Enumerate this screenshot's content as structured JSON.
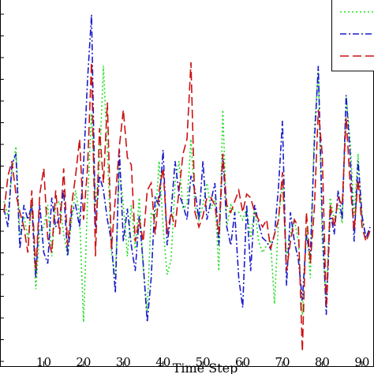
{
  "chart_data": {
    "type": "line",
    "xlabel": "Time Step",
    "ylabel": "",
    "title": "",
    "xlim": [
      -1,
      93
    ],
    "ylim": [
      0,
      100
    ],
    "grid": false,
    "legend_position": "top-right",
    "x_ticks": [
      10,
      20,
      30,
      40,
      50,
      60,
      70,
      80,
      90
    ],
    "x_tick_labels": [
      "10",
      "20",
      "30",
      "40",
      "50",
      "60",
      "70",
      "80",
      "90"
    ],
    "series": [
      {
        "style": "dotted",
        "color": "#22dd22",
        "x": [
          0,
          1,
          2,
          3,
          4,
          5,
          6,
          7,
          8,
          9,
          10,
          11,
          12,
          13,
          14,
          15,
          16,
          17,
          18,
          19,
          20,
          21,
          22,
          23,
          24,
          25,
          26,
          27,
          28,
          29,
          30,
          31,
          32,
          33,
          34,
          35,
          36,
          37,
          38,
          39,
          40,
          41,
          42,
          43,
          44,
          45,
          46,
          47,
          48,
          49,
          50,
          51,
          52,
          53,
          54,
          55,
          56,
          57,
          58,
          59,
          60,
          61,
          62,
          63,
          64,
          65,
          66,
          67,
          68,
          69,
          70,
          71,
          72,
          73,
          74,
          75,
          76,
          77,
          78,
          79,
          80,
          81,
          82,
          83,
          84,
          85,
          86,
          87,
          88,
          89,
          90,
          91,
          92
        ],
        "values": [
          45,
          41,
          53,
          60,
          36,
          41,
          35,
          44,
          21,
          37,
          38,
          44,
          30,
          44,
          45,
          36,
          30,
          40,
          48,
          41,
          12,
          45,
          69,
          44,
          55,
          82,
          58,
          31,
          24,
          55,
          44,
          30,
          44,
          32,
          46,
          27,
          15,
          42,
          40,
          56,
          38,
          25,
          29,
          50,
          56,
          43,
          44,
          62,
          44,
          40,
          44,
          50,
          43,
          46,
          26,
          70,
          38,
          44,
          42,
          42,
          40,
          43,
          35,
          43,
          34,
          31,
          33,
          34,
          17,
          40,
          50,
          30,
          36,
          40,
          34,
          14,
          38,
          24,
          64,
          81,
          34,
          18,
          46,
          40,
          44,
          39,
          74,
          62,
          41,
          58,
          40,
          35,
          36
        ]
      },
      {
        "style": "dash-dot",
        "color": "#1a1acc",
        "x": [
          0,
          1,
          2,
          3,
          4,
          5,
          6,
          7,
          8,
          9,
          10,
          11,
          12,
          13,
          14,
          15,
          16,
          17,
          18,
          19,
          20,
          21,
          22,
          23,
          24,
          25,
          26,
          27,
          28,
          29,
          30,
          31,
          32,
          33,
          34,
          35,
          36,
          37,
          38,
          39,
          40,
          41,
          42,
          43,
          44,
          45,
          46,
          47,
          48,
          49,
          50,
          51,
          52,
          53,
          54,
          55,
          56,
          57,
          58,
          59,
          60,
          61,
          62,
          63,
          64,
          65,
          66,
          67,
          68,
          69,
          70,
          71,
          72,
          73,
          74,
          75,
          76,
          77,
          78,
          79,
          80,
          81,
          82,
          83,
          84,
          85,
          86,
          87,
          88,
          89,
          90,
          91,
          92
        ],
        "values": [
          43,
          38,
          55,
          58,
          32,
          44,
          40,
          44,
          24,
          44,
          31,
          28,
          46,
          38,
          41,
          48,
          30,
          42,
          44,
          38,
          55,
          78,
          96,
          38,
          52,
          48,
          40,
          34,
          20,
          59,
          34,
          43,
          33,
          26,
          41,
          28,
          12,
          24,
          46,
          44,
          59,
          33,
          42,
          56,
          47,
          44,
          40,
          52,
          48,
          40,
          56,
          40,
          45,
          50,
          33,
          58,
          38,
          33,
          42,
          24,
          16,
          44,
          26,
          44,
          39,
          35,
          34,
          32,
          36,
          49,
          67,
          22,
          42,
          34,
          29,
          18,
          36,
          30,
          61,
          82,
          40,
          14,
          42,
          36,
          48,
          40,
          74,
          58,
          34,
          56,
          41,
          35,
          38
        ]
      },
      {
        "style": "dashed",
        "color": "#cc1111",
        "x": [
          0,
          1,
          2,
          3,
          4,
          5,
          6,
          7,
          8,
          9,
          10,
          11,
          12,
          13,
          14,
          15,
          16,
          17,
          18,
          19,
          20,
          21,
          22,
          23,
          24,
          25,
          26,
          27,
          28,
          29,
          30,
          31,
          32,
          33,
          34,
          35,
          36,
          37,
          38,
          39,
          40,
          41,
          42,
          43,
          44,
          45,
          46,
          47,
          48,
          49,
          50,
          51,
          52,
          53,
          54,
          55,
          56,
          57,
          58,
          59,
          60,
          61,
          62,
          63,
          64,
          65,
          66,
          67,
          68,
          69,
          70,
          71,
          72,
          73,
          74,
          75,
          76,
          77,
          78,
          79,
          80,
          81,
          82,
          83,
          84,
          85,
          86,
          87,
          88,
          89,
          90,
          91,
          92
        ],
        "values": [
          42,
          52,
          56,
          47,
          42,
          38,
          31,
          48,
          26,
          47,
          54,
          35,
          31,
          48,
          36,
          54,
          33,
          44,
          52,
          62,
          40,
          54,
          83,
          30,
          65,
          50,
          72,
          32,
          46,
          60,
          70,
          57,
          55,
          34,
          40,
          34,
          48,
          50,
          36,
          48,
          54,
          36,
          42,
          38,
          48,
          58,
          62,
          83,
          42,
          38,
          41,
          46,
          46,
          44,
          36,
          58,
          44,
          42,
          45,
          48,
          42,
          47,
          46,
          42,
          40,
          38,
          40,
          32,
          36,
          40,
          53,
          26,
          34,
          40,
          38,
          4,
          42,
          28,
          43,
          70,
          58,
          16,
          44,
          38,
          46,
          44,
          68,
          50,
          37,
          51,
          38,
          34,
          37
        ]
      }
    ]
  }
}
